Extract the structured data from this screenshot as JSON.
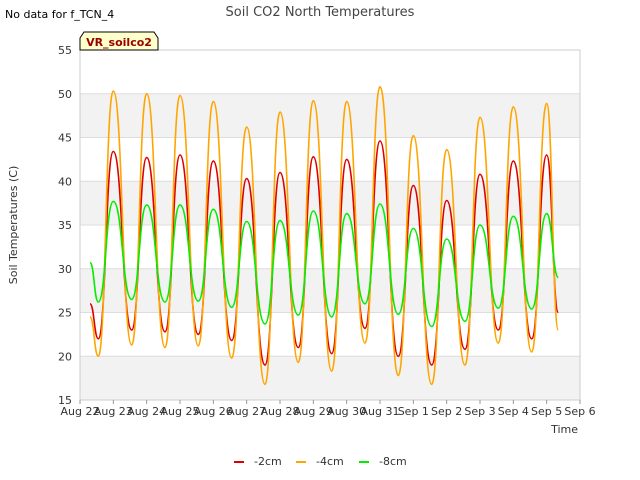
{
  "status_text": "No data for f_TCN_4",
  "chart_data": {
    "type": "line",
    "title": "Soil CO2 North Temperatures",
    "xlabel": "Time",
    "ylabel": "Soil Temperatures (C)",
    "ylim": [
      15,
      55
    ],
    "yticks": [
      15,
      20,
      25,
      30,
      35,
      40,
      45,
      50,
      55
    ],
    "xlim": [
      "Aug 22",
      "Sep 6"
    ],
    "xticks": [
      "Aug 22",
      "Aug 23",
      "Aug 24",
      "Aug 25",
      "Aug 26",
      "Aug 27",
      "Aug 28",
      "Aug 29",
      "Aug 30",
      "Aug 31",
      "Sep 1",
      "Sep 2",
      "Sep 3",
      "Sep 4",
      "Sep 5",
      "Sep 6"
    ],
    "x_start_offset": 0.3,
    "x_end_offset": 14.35,
    "annotation": "VR_soilco2",
    "background_bands": true,
    "legend_position": "bottom-center",
    "series": [
      {
        "name": "-2cm",
        "color": "#dd0000",
        "daily_max": [
          43.4,
          42.7,
          43.0,
          42.3,
          40.3,
          41.0,
          42.8,
          42.5,
          44.6,
          39.5,
          37.8,
          40.8,
          42.3,
          43.0
        ],
        "daily_min": [
          22.0,
          23.0,
          22.8,
          22.5,
          21.8,
          19.0,
          21.0,
          20.3,
          23.2,
          20.0,
          19.0,
          20.8,
          23.0,
          22.0
        ],
        "start_value": 26.0,
        "end_value": 25.0
      },
      {
        "name": "-4cm",
        "color": "#ffa500",
        "daily_max": [
          50.3,
          50.0,
          49.8,
          49.1,
          46.2,
          47.9,
          49.2,
          49.1,
          50.8,
          45.2,
          43.6,
          47.3,
          48.5,
          48.9
        ],
        "daily_min": [
          20.0,
          21.3,
          21.0,
          21.2,
          19.8,
          16.8,
          19.3,
          18.3,
          21.5,
          17.8,
          16.8,
          19.0,
          21.5,
          20.5
        ],
        "start_value": 24.5,
        "end_value": 23.0
      },
      {
        "name": "-8cm",
        "color": "#00ee00",
        "daily_max": [
          37.7,
          37.3,
          37.3,
          36.8,
          35.4,
          35.5,
          36.6,
          36.3,
          37.4,
          34.6,
          33.4,
          35.0,
          36.0,
          36.3
        ],
        "daily_min": [
          26.2,
          26.5,
          26.2,
          26.3,
          25.6,
          23.7,
          24.7,
          24.5,
          26.0,
          24.8,
          23.4,
          24.0,
          25.5,
          25.4
        ],
        "start_value": 30.7,
        "end_value": 29.0
      }
    ]
  }
}
